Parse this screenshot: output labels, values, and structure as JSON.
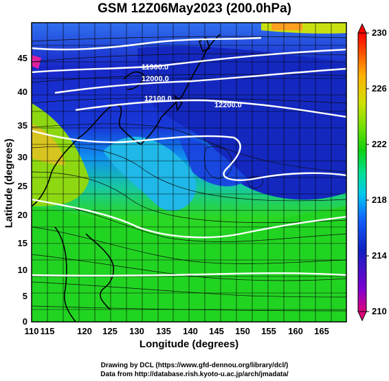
{
  "figure": {
    "title": "GSM 12Z06May2023 (200.0hPa)",
    "xlabel": "Longitude (degrees)",
    "ylabel": "Latitude (degrees)",
    "footer_line1": "Drawing by DCL (https://www.gfd-dennou.org/library/dcl/)",
    "footer_line2": "Data from http://database.rish.kyoto-u.ac.jp/arch/jmadata/"
  },
  "map_data": {
    "type": "filled_contour_with_streamlines",
    "x_ticks": [
      "110",
      "115",
      "120",
      "125",
      "130",
      "135",
      "140",
      "145",
      "150",
      "155",
      "160",
      "165"
    ],
    "y_ticks": [
      "0",
      "5",
      "10",
      "15",
      "20",
      "25",
      "30",
      "35",
      "40",
      "45"
    ],
    "xlim": [
      110,
      170
    ],
    "ylim": [
      0,
      50
    ],
    "grid": true,
    "contour_labels": [
      "11900.0",
      "12000.0",
      "12100.0",
      "12200.0"
    ],
    "colorbar": {
      "ticks": [
        "210",
        "214",
        "218",
        "222",
        "226",
        "230"
      ],
      "range": [
        210,
        230
      ],
      "colors": [
        "#e0007a",
        "#8000d0",
        "#1020c0",
        "#1060ff",
        "#00c8f0",
        "#00e090",
        "#10d010",
        "#70e000",
        "#d0e000",
        "#ffb000",
        "#ff5000",
        "#ff0000"
      ]
    }
  }
}
